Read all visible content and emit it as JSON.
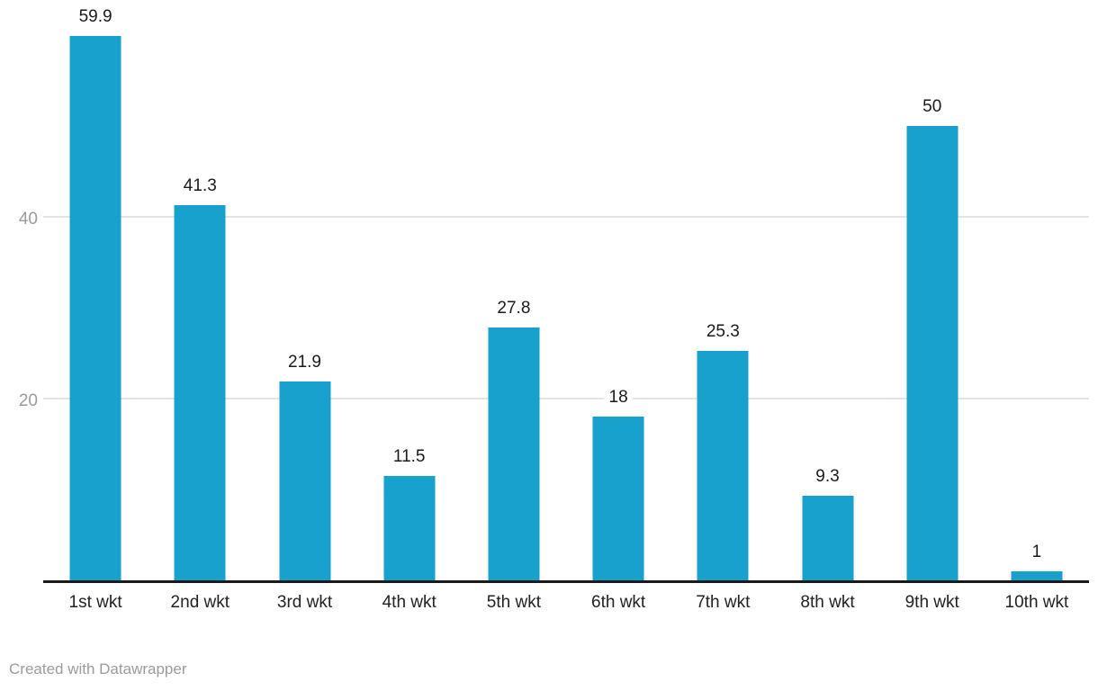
{
  "chart_data": {
    "type": "bar",
    "title": "",
    "xlabel": "",
    "ylabel": "",
    "categories": [
      "1st wkt",
      "2nd wkt",
      "3rd wkt",
      "4th wkt",
      "5th wkt",
      "6th wkt",
      "7th wkt",
      "8th wkt",
      "9th wkt",
      "10th wkt"
    ],
    "values": [
      59.9,
      41.3,
      21.9,
      11.5,
      27.8,
      18,
      25.3,
      9.3,
      50,
      1
    ],
    "value_labels": [
      "59.9",
      "41.3",
      "21.9",
      "11.5",
      "27.8",
      "18",
      "25.3",
      "9.3",
      "50",
      "1"
    ],
    "yticks": [
      20,
      40
    ],
    "ytick_labels": [
      "20",
      "40"
    ],
    "ylim": [
      0,
      64.2
    ],
    "grid": "horizontal",
    "legend": "none",
    "colors": {
      "bar": "#18a1cd",
      "axis_line": "#1a1a1a",
      "gridline": "#e4e4e4",
      "ytick_label": "#9b9b9b",
      "category_label": "#222222",
      "value_label": "#1a1a1a",
      "credit": "#9b9b9b"
    }
  },
  "footer": {
    "credit": "Created with Datawrapper"
  }
}
